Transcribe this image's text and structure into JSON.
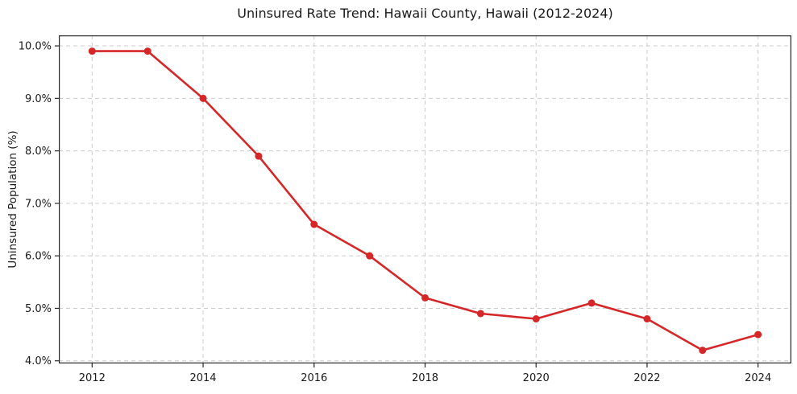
{
  "chart_data": {
    "type": "line",
    "title": "Uninsured Rate Trend: Hawaii County, Hawaii (2012-2024)",
    "xlabel": "",
    "ylabel": "Uninsured Population (%)",
    "x": [
      2012,
      2013,
      2014,
      2015,
      2016,
      2017,
      2018,
      2019,
      2020,
      2021,
      2022,
      2023,
      2024
    ],
    "values": [
      9.9,
      9.9,
      9.0,
      7.9,
      6.6,
      6.0,
      5.2,
      4.9,
      4.8,
      5.1,
      4.8,
      4.2,
      4.5
    ],
    "xlim": [
      2011.4,
      2024.6
    ],
    "ylim": [
      3.95,
      10.2
    ],
    "xticks": {
      "values": [
        2012,
        2014,
        2016,
        2018,
        2020,
        2022,
        2024
      ],
      "labels": [
        "2012",
        "2014",
        "2016",
        "2018",
        "2020",
        "2022",
        "2024"
      ]
    },
    "yticks": {
      "values": [
        4,
        5,
        6,
        7,
        8,
        9,
        10
      ],
      "labels": [
        "4.0%",
        "5.0%",
        "6.0%",
        "7.0%",
        "8.0%",
        "9.0%",
        "10.0%"
      ]
    },
    "grid": true,
    "grid_style": "dashed",
    "legend": "none",
    "colors": {
      "line": "#d62728",
      "marker": "#d62728",
      "grid": "#cccccc",
      "spine": "#262626",
      "text": "#1a1a1a",
      "background": "#ffffff"
    },
    "marker": "circle"
  }
}
